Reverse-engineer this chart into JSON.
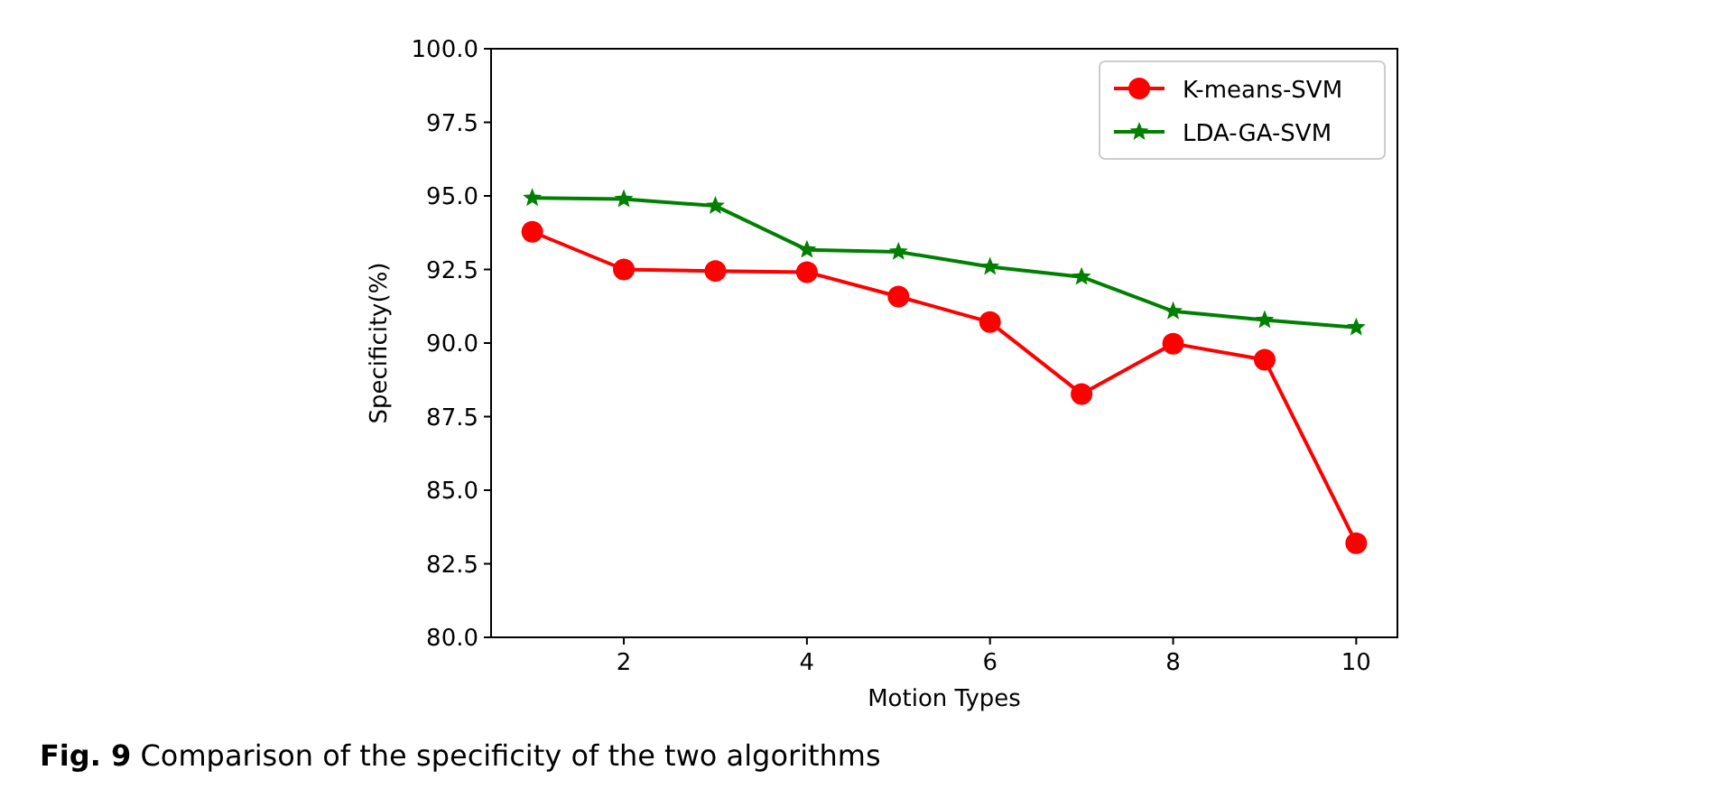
{
  "chart_data": {
    "type": "line",
    "xlabel": "Motion Types",
    "ylabel": "Specificity(%)",
    "x": [
      1,
      2,
      3,
      4,
      5,
      6,
      7,
      8,
      9,
      10
    ],
    "series": [
      {
        "name": "K-means-SVM",
        "color": "#ff0000",
        "marker": "circle",
        "values": [
          93.78,
          92.5,
          92.45,
          92.41,
          91.58,
          90.71,
          88.27,
          89.98,
          89.43,
          83.2
        ]
      },
      {
        "name": "LDA-GA-SVM",
        "color": "#008000",
        "marker": "star",
        "values": [
          94.93,
          94.89,
          94.66,
          93.17,
          93.1,
          92.59,
          92.25,
          91.08,
          90.78,
          90.53
        ]
      }
    ],
    "xlim": [
      0.55,
      10.45
    ],
    "xticks": [
      2,
      4,
      6,
      8,
      10
    ],
    "ylim": [
      80,
      100
    ],
    "yticks": [
      {
        "value": 80,
        "label": "80.0"
      },
      {
        "value": 82.5,
        "label": "82.5"
      },
      {
        "value": 85,
        "label": "85.0"
      },
      {
        "value": 87.5,
        "label": "87.5"
      },
      {
        "value": 90,
        "label": "90.0"
      },
      {
        "value": 92.5,
        "label": "92.5"
      },
      {
        "value": 95,
        "label": "95.0"
      },
      {
        "value": 97.5,
        "label": "97.5"
      },
      {
        "value": 100,
        "label": "100.0"
      }
    ],
    "legend": "top right",
    "grid": false,
    "line_style": "solid",
    "annotations": [
      "Fig. 9  Comparison of the specificity of the two algorithms"
    ]
  }
}
